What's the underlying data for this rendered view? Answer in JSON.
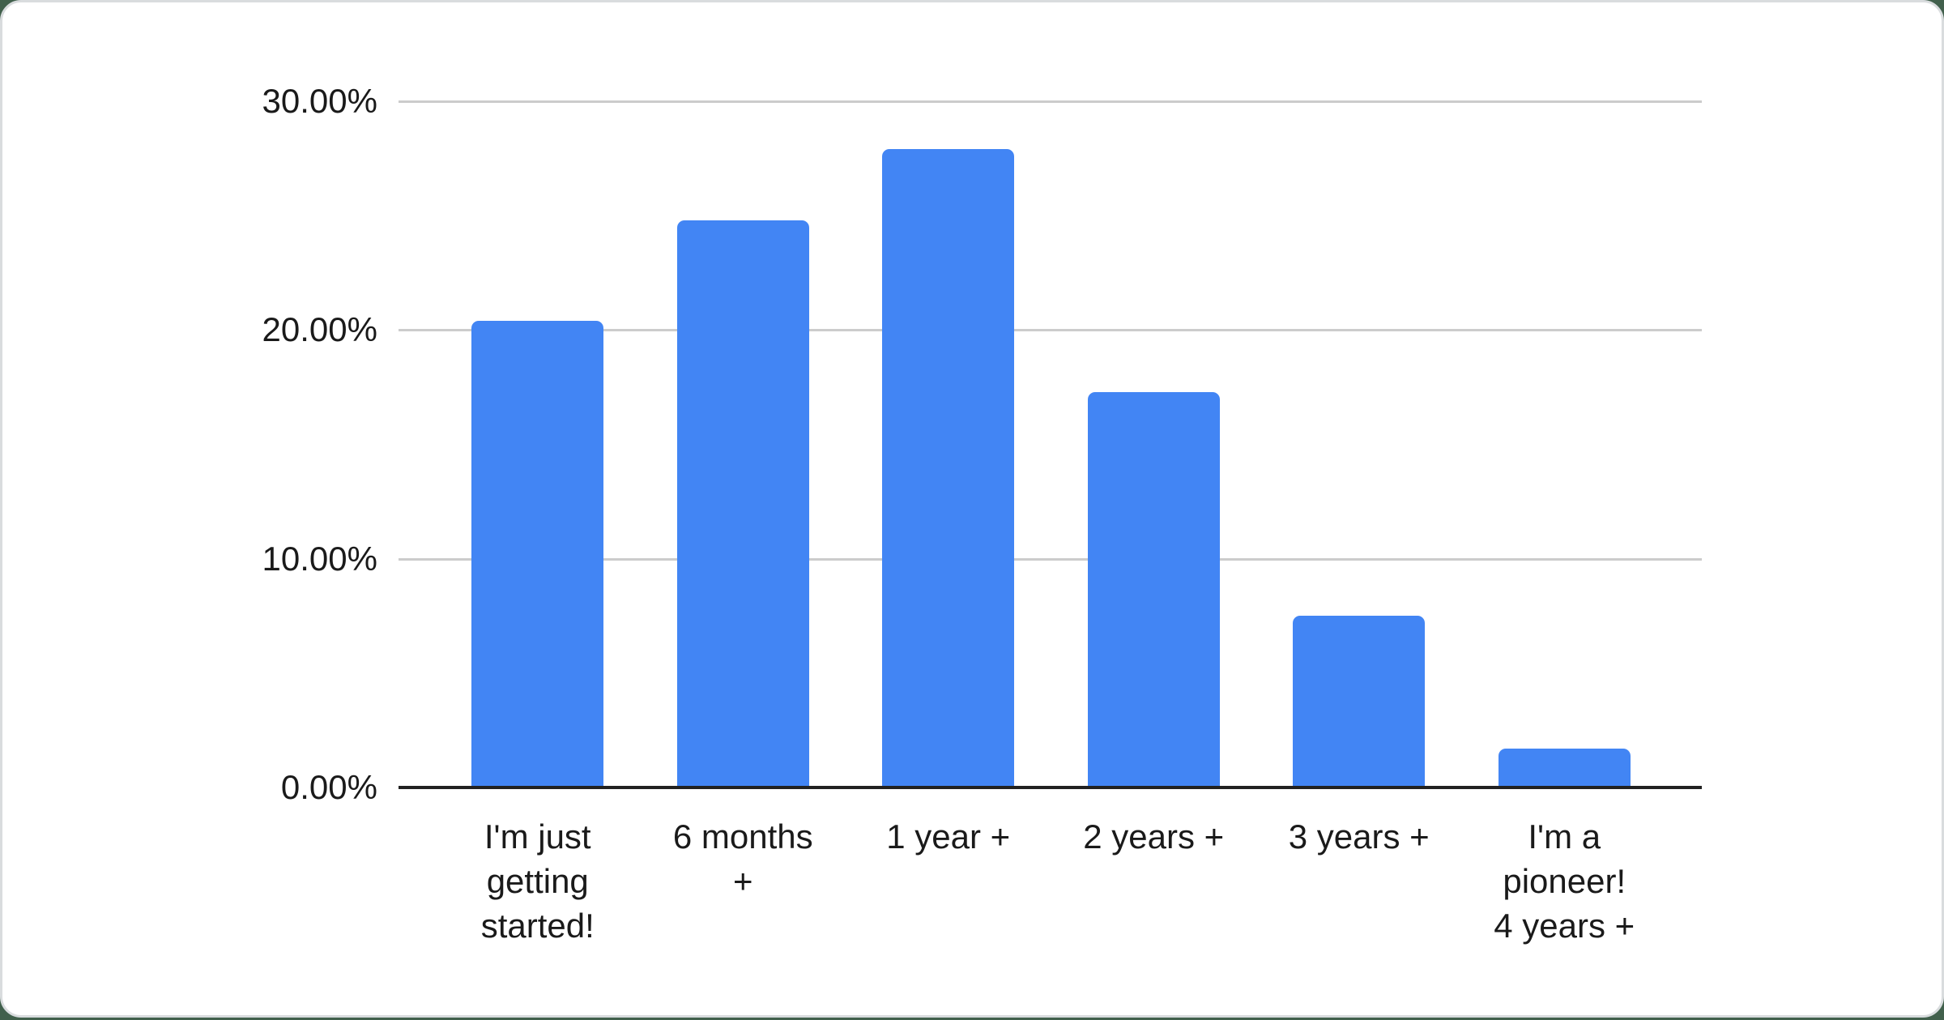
{
  "chart_data": {
    "type": "bar",
    "title": "",
    "xlabel": "",
    "ylabel": "",
    "unit": "%",
    "categories": [
      "I'm just getting started!",
      "6 months +",
      "1 year +",
      "2 years +",
      "3 years +",
      "I'm a pioneer! 4 years +"
    ],
    "category_lines": [
      [
        "I'm just",
        "getting",
        "started!"
      ],
      [
        "6 months",
        "+"
      ],
      [
        "1 year +"
      ],
      [
        "2 years +"
      ],
      [
        "3 years +"
      ],
      [
        "I'm a",
        "pioneer!",
        "4 years +"
      ]
    ],
    "values": [
      20.4,
      24.8,
      27.9,
      17.3,
      7.5,
      1.7
    ],
    "value_labels": [
      "20.40%",
      "24.80%",
      "27.90%",
      "17.30%",
      "7.50%",
      "1.70%"
    ],
    "ylim": [
      0,
      30
    ],
    "yticks": [
      {
        "value": 30,
        "label": "30.00%"
      },
      {
        "value": 20,
        "label": "20.00%"
      },
      {
        "value": 10,
        "label": "10.00%"
      },
      {
        "value": 0,
        "label": "0.00%"
      }
    ],
    "grid": true,
    "legend": "none",
    "colors": {
      "bar": "#4285F4",
      "gridline": "#cccccc",
      "axis_line": "#212121",
      "label_text": "#1a1a1a",
      "card_background": "#ffffff",
      "card_border": "#d9dcde",
      "page_background": "#41604c"
    }
  }
}
